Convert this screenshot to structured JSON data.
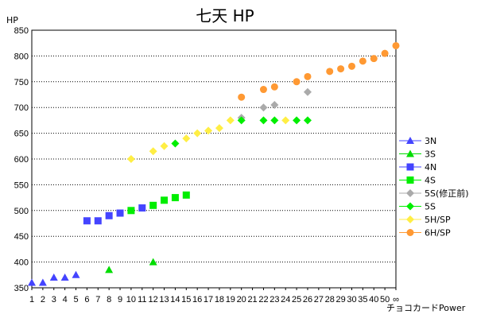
{
  "chart_data": {
    "type": "scatter",
    "title": "七天 HP",
    "ylabel": "HP",
    "xlabel": "チョコカードPower",
    "ylim": [
      350,
      850
    ],
    "yticks": [
      350,
      400,
      450,
      500,
      550,
      600,
      650,
      700,
      750,
      800,
      850
    ],
    "x_categories": [
      "1",
      "2",
      "3",
      "4",
      "5",
      "6",
      "7",
      "8",
      "9",
      "10",
      "11",
      "12",
      "13",
      "14",
      "15",
      "16",
      "17",
      "18",
      "19",
      "20",
      "21",
      "22",
      "23",
      "24",
      "25",
      "26",
      "27",
      "28",
      "29",
      "30",
      "35",
      "40",
      "50",
      "∞"
    ],
    "grid": "horizontal-dotted",
    "legend_position": "right",
    "series": [
      {
        "name": "3N",
        "color": "#4444ff",
        "marker": "triangle",
        "points": [
          [
            "1",
            360
          ],
          [
            "2",
            360
          ],
          [
            "3",
            370
          ],
          [
            "4",
            370
          ],
          [
            "5",
            375
          ]
        ]
      },
      {
        "name": "3S",
        "color": "#00dd00",
        "marker": "triangle",
        "points": [
          [
            "8",
            385
          ],
          [
            "12",
            400
          ]
        ]
      },
      {
        "name": "4N",
        "color": "#4444ff",
        "marker": "square",
        "points": [
          [
            "6",
            480
          ],
          [
            "7",
            480
          ],
          [
            "8",
            490
          ],
          [
            "9",
            495
          ],
          [
            "11",
            505
          ]
        ]
      },
      {
        "name": "4S",
        "color": "#00ee00",
        "marker": "square",
        "points": [
          [
            "10",
            500
          ],
          [
            "12",
            510
          ],
          [
            "13",
            520
          ],
          [
            "14",
            525
          ],
          [
            "15",
            530
          ]
        ]
      },
      {
        "name": "5S(修正前)",
        "color": "#aaaaaa",
        "marker": "diamond",
        "points": [
          [
            "22",
            700
          ],
          [
            "23",
            705
          ],
          [
            "26",
            730
          ],
          [
            "20",
            680
          ]
        ]
      },
      {
        "name": "5S",
        "color": "#00ee00",
        "marker": "diamond",
        "points": [
          [
            "14",
            630
          ],
          [
            "20",
            675
          ],
          [
            "22",
            675
          ],
          [
            "23",
            675
          ],
          [
            "25",
            675
          ],
          [
            "26",
            675
          ]
        ]
      },
      {
        "name": "5H/SP",
        "color": "#ffee44",
        "marker": "diamond",
        "points": [
          [
            "10",
            600
          ],
          [
            "12",
            615
          ],
          [
            "13",
            625
          ],
          [
            "15",
            640
          ],
          [
            "16",
            650
          ],
          [
            "17",
            655
          ],
          [
            "18",
            660
          ],
          [
            "19",
            675
          ],
          [
            "24",
            675
          ]
        ]
      },
      {
        "name": "6H/SP",
        "color": "#ff9933",
        "marker": "circle",
        "points": [
          [
            "20",
            720
          ],
          [
            "22",
            735
          ],
          [
            "23",
            740
          ],
          [
            "25",
            750
          ],
          [
            "26",
            760
          ],
          [
            "28",
            770
          ],
          [
            "29",
            775
          ],
          [
            "30",
            780
          ],
          [
            "35",
            790
          ],
          [
            "40",
            795
          ],
          [
            "50",
            805
          ],
          [
            "∞",
            820
          ]
        ]
      }
    ]
  }
}
